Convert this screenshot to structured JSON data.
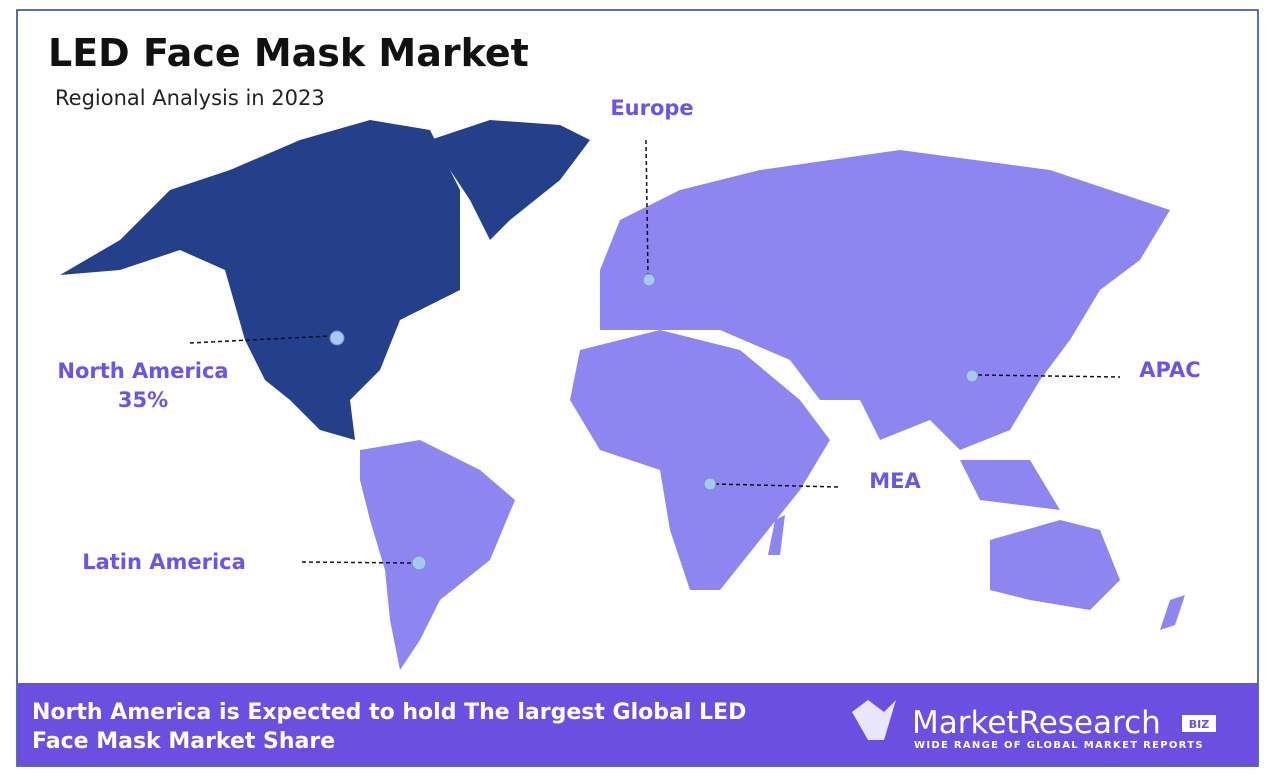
{
  "header": {
    "title": "LED Face Mask Market",
    "subtitle": "Regional Analysis in 2023"
  },
  "regions": [
    {
      "label": "North America",
      "share": "35%"
    },
    {
      "label": "Europe"
    },
    {
      "label": "APAC"
    },
    {
      "label": "MEA"
    },
    {
      "label": "Latin America"
    }
  ],
  "footer": {
    "lines": [
      "North America is Expected to hold The largest Global LED",
      "Face Mask Market Share"
    ]
  },
  "logo": {
    "name": "MarketResearch",
    "badge": "BIZ",
    "tagline": "WIDE RANGE OF GLOBAL MARKET REPORTS"
  }
}
